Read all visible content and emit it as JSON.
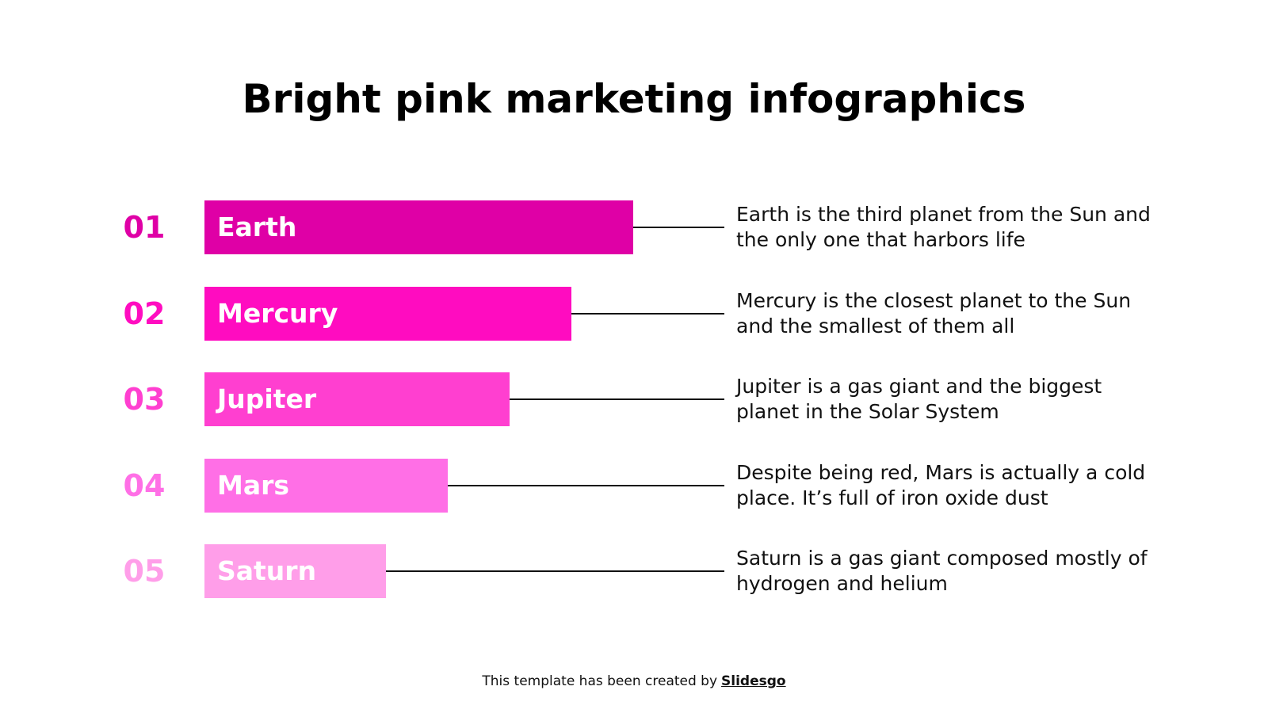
{
  "header": {
    "title": "Bright pink marketing infographics"
  },
  "items": [
    {
      "number": "01",
      "label": "Earth",
      "description": "Earth is the third planet from the Sun and the only one that harbors life",
      "color": "#df00a6"
    },
    {
      "number": "02",
      "label": "Mercury",
      "description": "Mercury is the closest planet to the Sun and the smallest of them all",
      "color": "#ff0cc0"
    },
    {
      "number": "03",
      "label": "Jupiter",
      "description": "Jupiter is a gas giant and the biggest planet in the Solar System",
      "color": "#ff3fd0"
    },
    {
      "number": "04",
      "label": "Mars",
      "description": "Despite being red, Mars is actually a cold place. It’s full of iron oxide dust",
      "color": "#ff6fe6"
    },
    {
      "number": "05",
      "label": "Saturn",
      "description": "Saturn is a gas giant composed mostly of hydrogen and helium",
      "color": "#ff9ee9"
    }
  ],
  "footer": {
    "text": "This template has been created by",
    "link": "Slidesgo"
  }
}
